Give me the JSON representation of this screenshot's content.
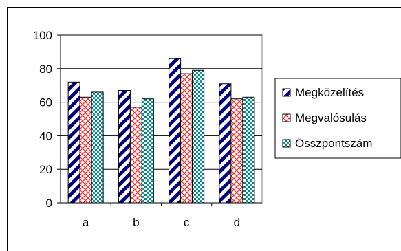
{
  "chart_data": {
    "type": "bar",
    "categories": [
      "a",
      "b",
      "c",
      "d"
    ],
    "series": [
      {
        "name": "Megközelítés",
        "values": [
          72,
          67,
          86,
          71
        ],
        "pattern": "diagonal-stripes",
        "color": "#000080"
      },
      {
        "name": "Megvalósulás",
        "values": [
          63,
          57,
          77,
          62
        ],
        "pattern": "crosshatch",
        "color": "#ff0000"
      },
      {
        "name": "Összpontszám",
        "values": [
          66,
          62,
          79,
          63
        ],
        "pattern": "dots",
        "color": "#008080"
      }
    ],
    "ylim": [
      0,
      100
    ],
    "yticks": [
      "0",
      "20",
      "40",
      "60",
      "80",
      "100"
    ],
    "grid": true,
    "legend_position": "right",
    "title": "",
    "xlabel": "",
    "ylabel": ""
  }
}
